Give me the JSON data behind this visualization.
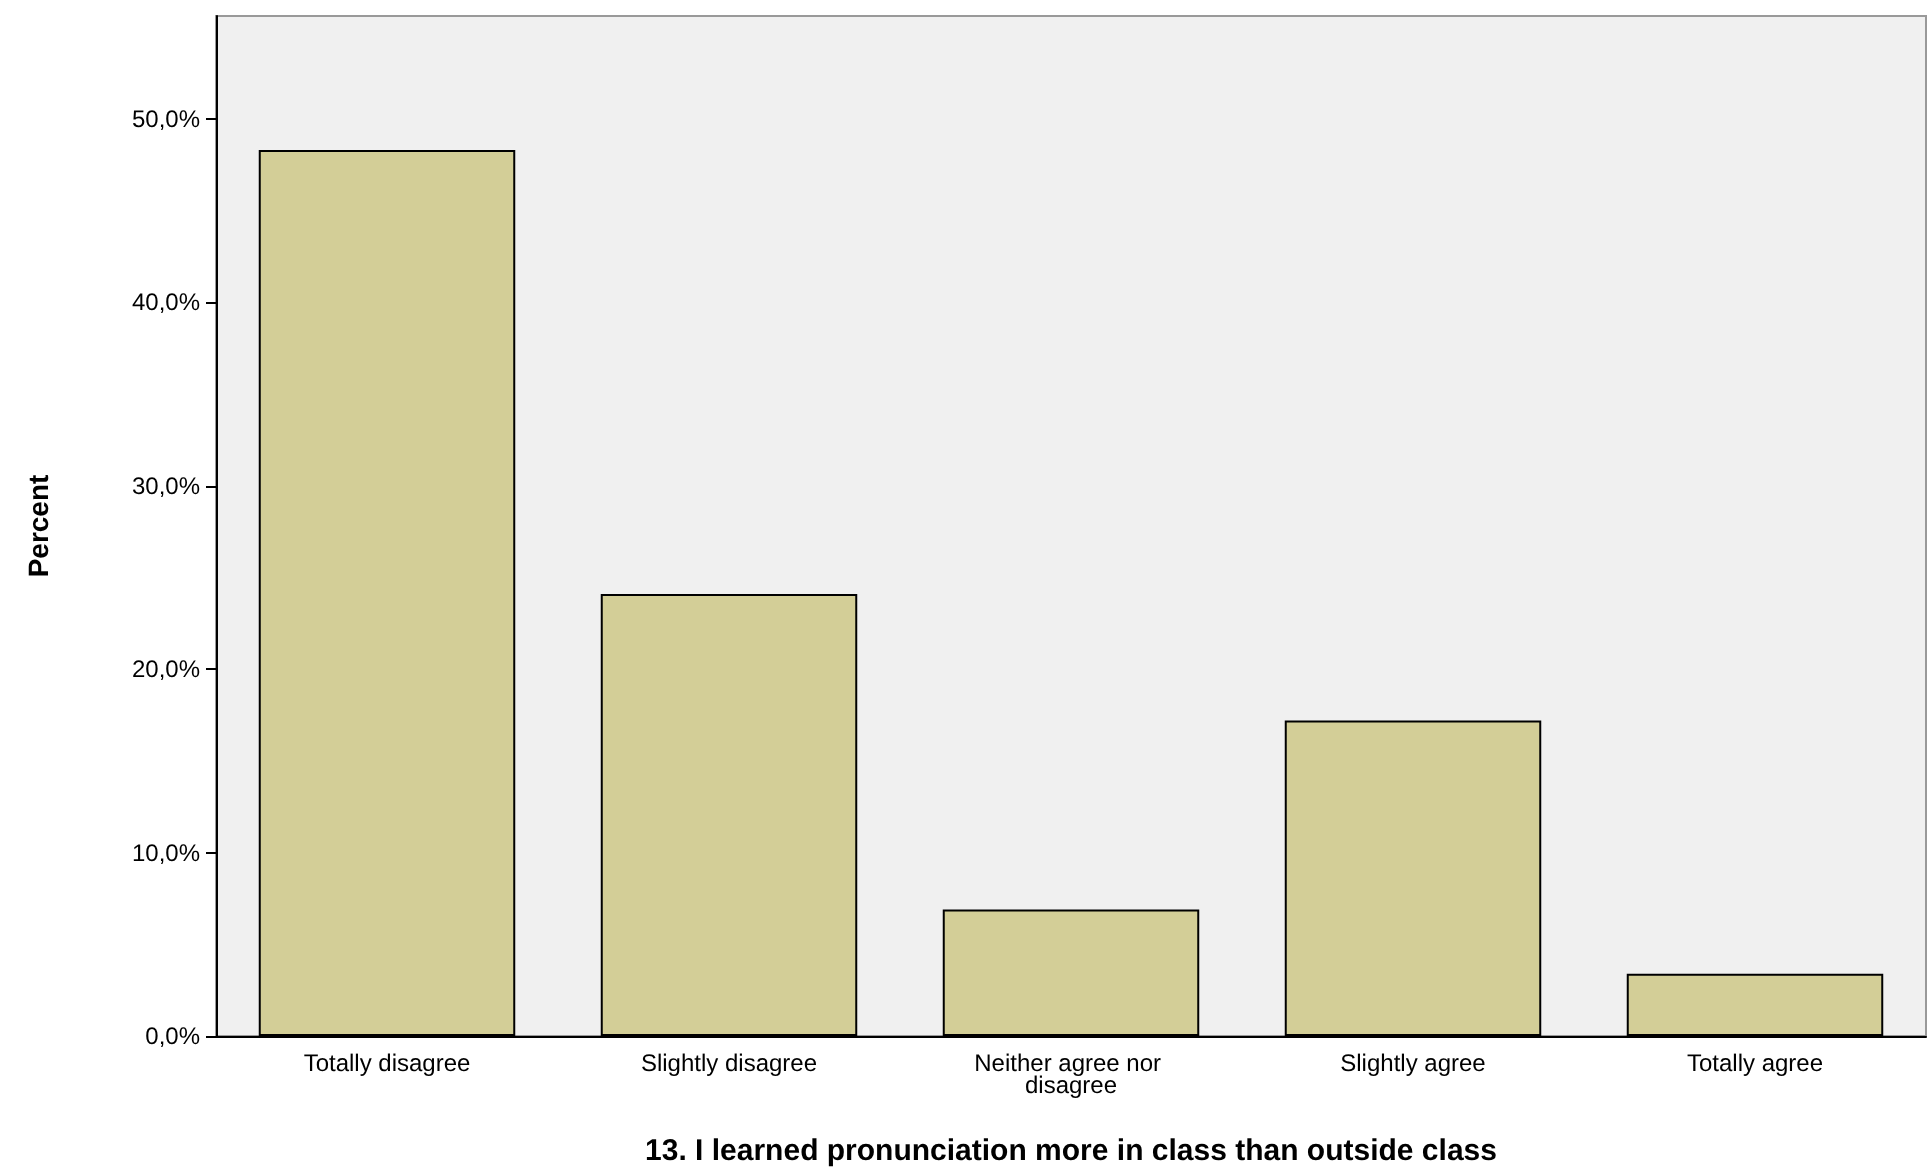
{
  "chart_data": {
    "type": "bar",
    "xlabel": "13. I learned pronunciation more in class than outside class",
    "ylabel": "Percent",
    "categories": [
      "Totally disagree",
      "Slightly disagree",
      "Neither agree nor disagree",
      "Slightly agree",
      "Totally agree"
    ],
    "values": [
      48.3,
      24.1,
      6.9,
      17.2,
      3.4
    ],
    "color": "#d3ce97",
    "ylim": [
      0,
      55.6
    ],
    "yticks": [
      {
        "value": 0,
        "label": "0,0%"
      },
      {
        "value": 10,
        "label": "10,0%"
      },
      {
        "value": 20,
        "label": "20,0%"
      },
      {
        "value": 30,
        "label": "30,0%"
      },
      {
        "value": 40,
        "label": "40,0%"
      },
      {
        "value": 50,
        "label": "50,0%"
      }
    ],
    "grid": false
  }
}
